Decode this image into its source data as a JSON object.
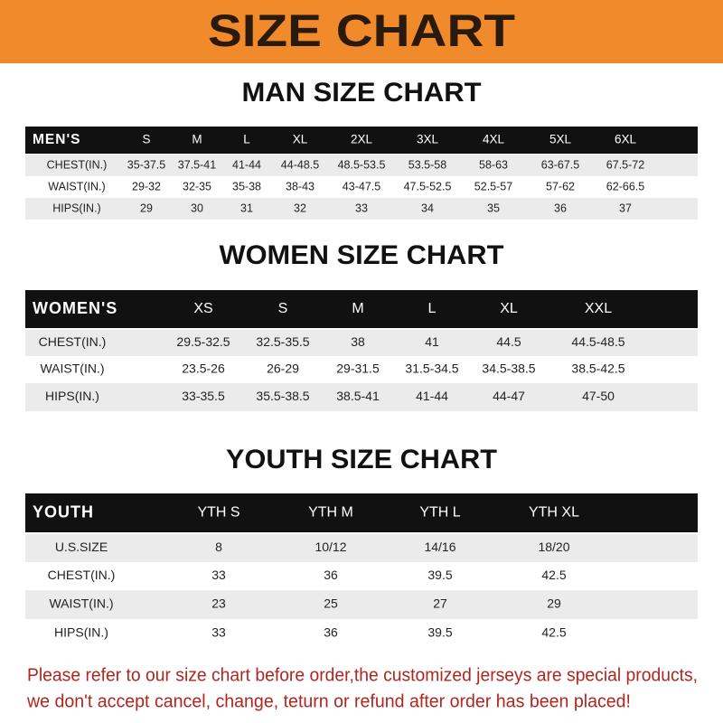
{
  "header": {
    "title": "SIZE CHART"
  },
  "sections": [
    {
      "title": "MAN SIZE CHART",
      "columns": [
        "MEN'S",
        "S",
        "M",
        "L",
        "XL",
        "2XL",
        "3XL",
        "4XL",
        "5XL",
        "6XL"
      ],
      "rows": [
        [
          "CHEST(IN.)",
          "35-37.5",
          "37.5-41",
          "41-44",
          "44-48.5",
          "48.5-53.5",
          "53.5-58",
          "58-63",
          "63-67.5",
          "67.5-72"
        ],
        [
          "WAIST(IN.)",
          "29-32",
          "32-35",
          "35-38",
          "38-43",
          "43-47.5",
          "47.5-52.5",
          "52.5-57",
          "57-62",
          "62-66.5"
        ],
        [
          "HIPS(IN.)",
          "29",
          "30",
          "31",
          "32",
          "33",
          "34",
          "35",
          "36",
          "37"
        ]
      ]
    },
    {
      "title": "WOMEN SIZE CHART",
      "columns": [
        "WOMEN'S",
        "XS",
        "S",
        "M",
        "L",
        "XL",
        "XXL"
      ],
      "rows": [
        [
          "CHEST(IN.)",
          "29.5-32.5",
          "32.5-35.5",
          "38",
          "41",
          "44.5",
          "44.5-48.5"
        ],
        [
          "WAIST(IN.)",
          "23.5-26",
          "26-29",
          "29-31.5",
          "31.5-34.5",
          "34.5-38.5",
          "38.5-42.5"
        ],
        [
          "HIPS(IN.)",
          "33-35.5",
          "35.5-38.5",
          "38.5-41",
          "41-44",
          "44-47",
          "47-50"
        ]
      ]
    },
    {
      "title": "YOUTH SIZE CHART",
      "columns": [
        "YOUTH",
        "YTH S",
        "YTH M",
        "YTH L",
        "YTH XL"
      ],
      "rows": [
        [
          "U.S.SIZE",
          "8",
          "10/12",
          "14/16",
          "18/20"
        ],
        [
          "CHEST(IN.)",
          "33",
          "36",
          "39.5",
          "42.5"
        ],
        [
          "WAIST(IN.)",
          "23",
          "25",
          "27",
          "29"
        ],
        [
          "HIPS(IN.)",
          "33",
          "36",
          "39.5",
          "42.5"
        ]
      ]
    }
  ],
  "footer": {
    "lines": [
      "Please refer to our size chart before order,the customized jerseys are special products,",
      "we don't accept cancel, change, teturn or refund after order has been placed!"
    ]
  }
}
